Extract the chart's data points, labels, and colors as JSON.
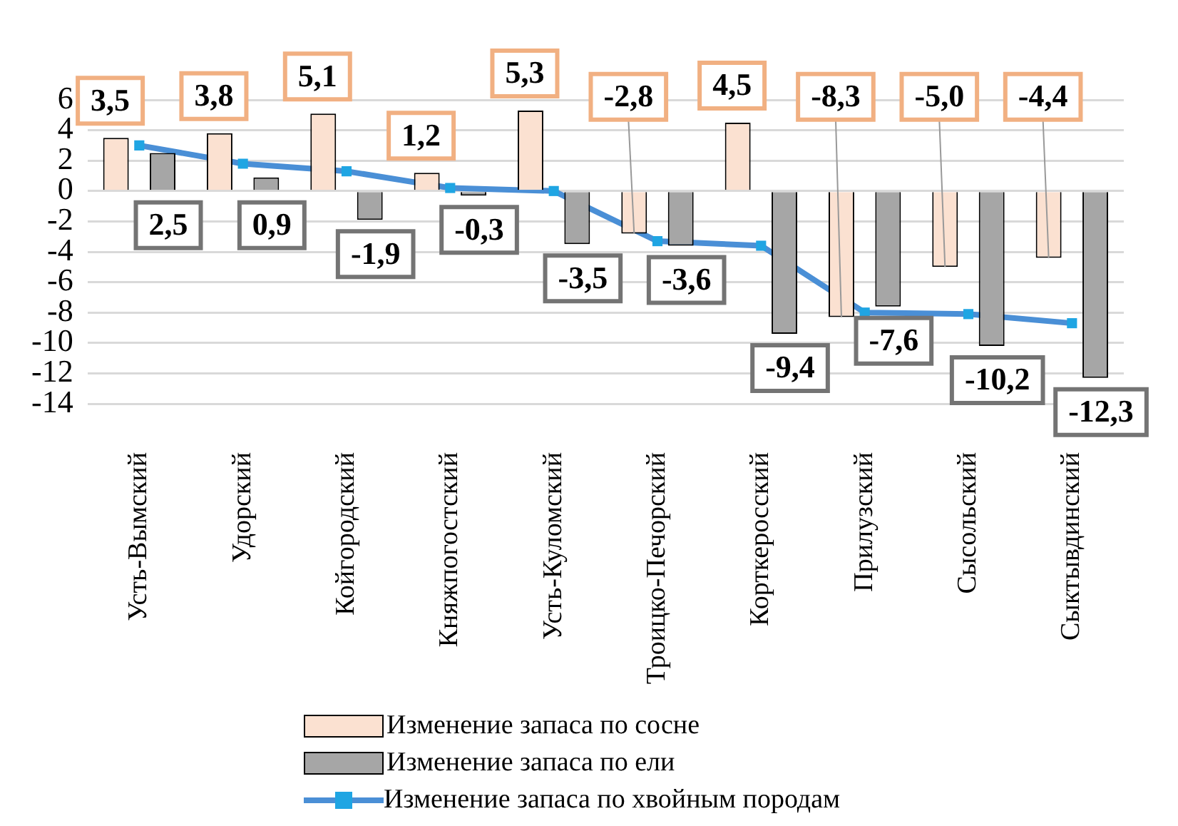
{
  "chart_data": {
    "type": "bar",
    "categories": [
      "Усть-Вымский",
      "Удорский",
      "Койгородский",
      "Княжпогостский",
      "Усть-Куломский",
      "Троицко-Печорский",
      "Корткеросский",
      "Прилузский",
      "Сысольский",
      "Сыктывдинский"
    ],
    "series": [
      {
        "name": "Изменение запаса по сосне",
        "color": "#fbe1d1",
        "values": [
          3.5,
          3.8,
          5.1,
          1.2,
          5.3,
          -2.8,
          4.5,
          -8.3,
          -5.0,
          -4.4
        ],
        "value_labels": [
          "3,5",
          "3,8",
          "5,1",
          "1,2",
          "5,3",
          "-2,8",
          "4,5",
          "-8,3",
          "-5,0",
          "-4,4"
        ]
      },
      {
        "name": "Изменение запаса по ели",
        "color": "#a6a6a6",
        "values": [
          2.5,
          0.9,
          -1.9,
          -0.3,
          -3.5,
          -3.6,
          -9.4,
          -7.6,
          -10.2,
          -12.3
        ],
        "value_labels": [
          "2,5",
          "0,9",
          "-1,9",
          "-0,3",
          "-3,5",
          "-3,6",
          "-9,4",
          "-7,6",
          "-10,2",
          "-12,3"
        ]
      },
      {
        "name": "Изменение запаса по хвойным породам",
        "type": "line",
        "color": "#4a8fd6",
        "values": [
          3.0,
          1.8,
          1.3,
          0.2,
          0.0,
          -3.3,
          -3.6,
          -8.0,
          -8.1,
          -8.7
        ]
      }
    ],
    "ylim": [
      -14,
      6
    ],
    "yticks": [
      -14,
      -12,
      -10,
      -8,
      -6,
      -4,
      -2,
      0,
      2,
      4,
      6
    ],
    "grid": "y",
    "legend": "bottom",
    "marker": "square"
  }
}
